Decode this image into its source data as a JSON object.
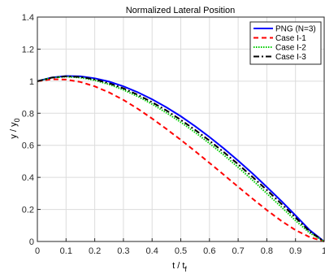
{
  "chart_data": {
    "type": "line",
    "title": "Normalized Lateral Position",
    "xlabel": "t / t",
    "xlabel_sub": "f",
    "ylabel": "y / y",
    "ylabel_sub": "0",
    "xlim": [
      0,
      1
    ],
    "ylim": [
      0,
      1.4
    ],
    "grid": true,
    "legend_position": "top-right",
    "x_ticks": [
      0,
      0.1,
      0.2,
      0.3,
      0.4,
      0.5,
      0.6,
      0.7,
      0.8,
      0.9,
      1
    ],
    "x_tick_labels": [
      "0",
      "0.1",
      "0.2",
      "0.3",
      "0.4",
      "0.5",
      "0.6",
      "0.7",
      "0.8",
      "0.9",
      "1"
    ],
    "y_ticks": [
      0,
      0.2,
      0.4,
      0.6,
      0.8,
      1,
      1.2,
      1.4
    ],
    "y_tick_labels": [
      "0",
      "0.2",
      "0.4",
      "0.6",
      "0.8",
      "1",
      "1.2",
      "1.4"
    ],
    "x": [
      0,
      0.05,
      0.1,
      0.15,
      0.2,
      0.25,
      0.3,
      0.35,
      0.4,
      0.45,
      0.5,
      0.55,
      0.6,
      0.65,
      0.7,
      0.75,
      0.8,
      0.85,
      0.9,
      0.95,
      1
    ],
    "series": [
      {
        "name": "PNG (N=3)",
        "color": "#0000ff",
        "dash": "solid",
        "values": [
          1.0,
          1.023,
          1.032,
          1.03,
          1.018,
          0.997,
          0.968,
          0.931,
          0.887,
          0.837,
          0.781,
          0.719,
          0.652,
          0.58,
          0.504,
          0.424,
          0.34,
          0.253,
          0.163,
          0.07,
          0.0
        ]
      },
      {
        "name": "Case I-1",
        "color": "#ff0000",
        "dash": "dashed",
        "values": [
          1.0,
          1.012,
          1.01,
          0.995,
          0.968,
          0.93,
          0.883,
          0.828,
          0.767,
          0.702,
          0.634,
          0.563,
          0.49,
          0.416,
          0.341,
          0.267,
          0.196,
          0.129,
          0.071,
          0.027,
          0.0
        ]
      },
      {
        "name": "Case I-2",
        "color": "#00cc00",
        "dash": "dotted",
        "values": [
          1.0,
          1.022,
          1.028,
          1.022,
          1.006,
          0.98,
          0.946,
          0.905,
          0.857,
          0.803,
          0.744,
          0.68,
          0.612,
          0.539,
          0.463,
          0.383,
          0.3,
          0.216,
          0.131,
          0.053,
          0.0
        ]
      },
      {
        "name": "Case I-3",
        "color": "#000000",
        "dash": "dashdot",
        "values": [
          1.0,
          1.022,
          1.03,
          1.026,
          1.011,
          0.987,
          0.955,
          0.915,
          0.869,
          0.817,
          0.759,
          0.696,
          0.629,
          0.557,
          0.482,
          0.403,
          0.321,
          0.236,
          0.149,
          0.062,
          0.0
        ]
      }
    ]
  }
}
